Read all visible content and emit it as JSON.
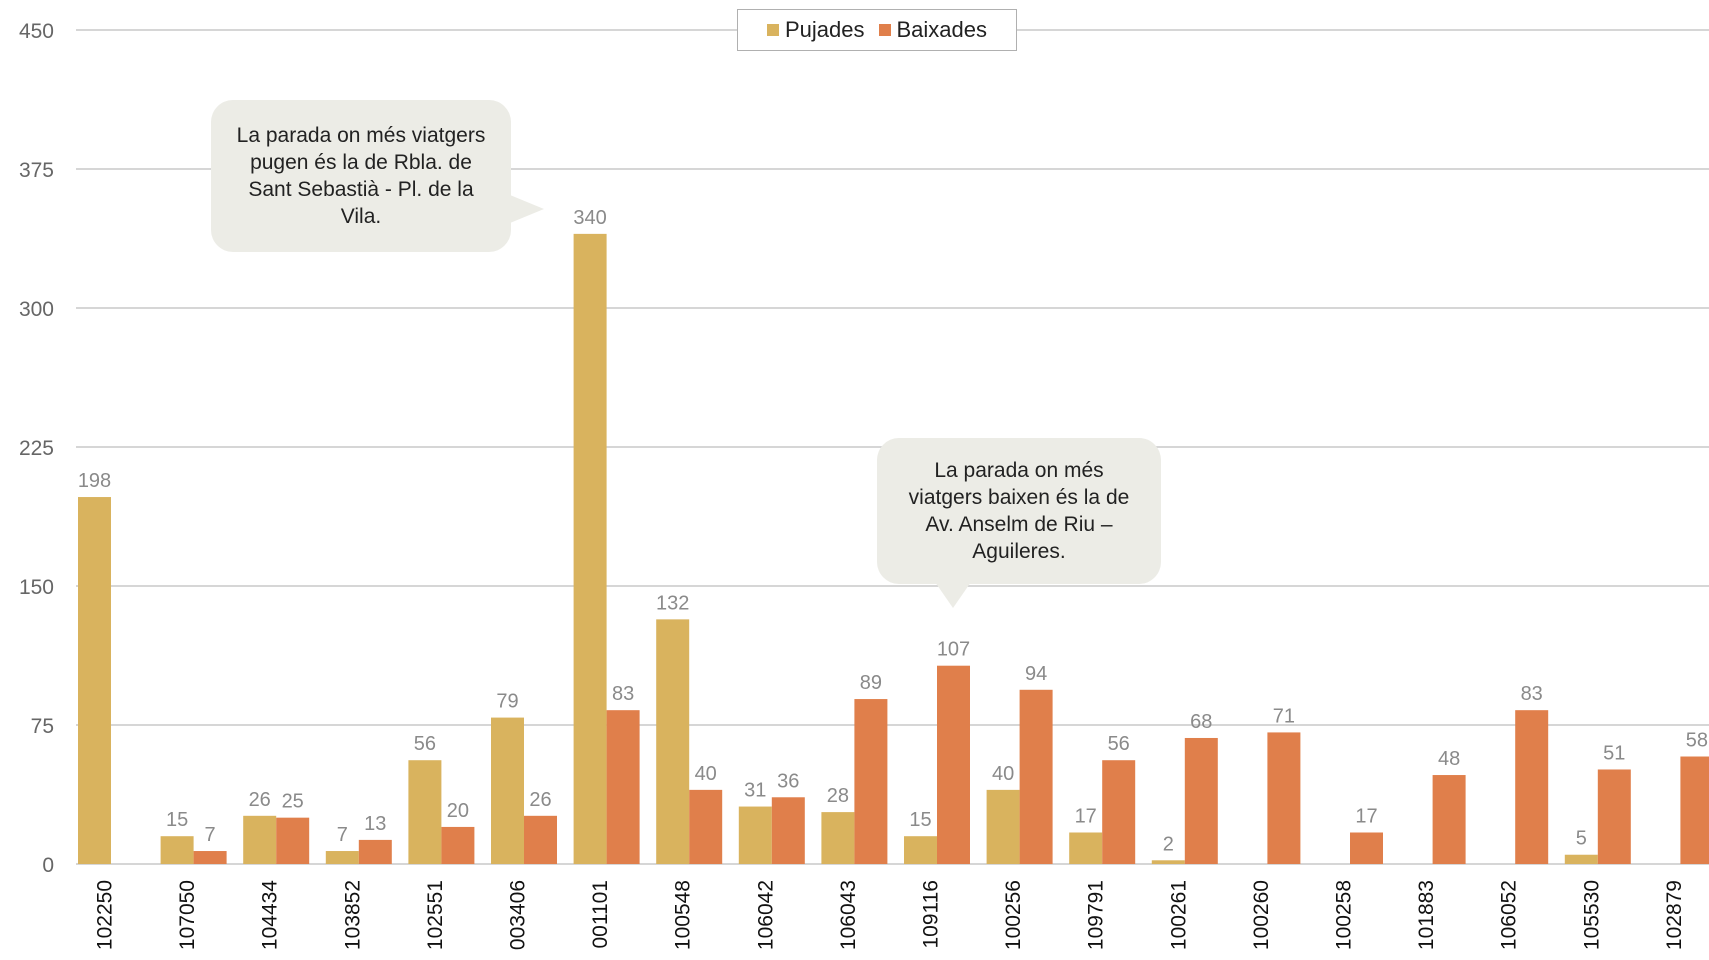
{
  "chart_data": {
    "type": "bar",
    "categories": [
      "102250",
      "107050",
      "104434",
      "103852",
      "102551",
      "003406",
      "001101",
      "100548",
      "106042",
      "106043",
      "109116",
      "100256",
      "109791",
      "100261",
      "100260",
      "100258",
      "101883",
      "106052",
      "105530",
      "102879"
    ],
    "series": [
      {
        "name": "Pujades",
        "color": "#d9b35e",
        "values": [
          198,
          15,
          26,
          7,
          56,
          79,
          340,
          132,
          31,
          28,
          15,
          40,
          17,
          2,
          null,
          null,
          null,
          null,
          5,
          null
        ]
      },
      {
        "name": "Baixades",
        "color": "#e07f4b",
        "values": [
          null,
          7,
          25,
          13,
          20,
          26,
          83,
          40,
          36,
          89,
          107,
          94,
          56,
          68,
          71,
          17,
          48,
          83,
          51,
          58
        ]
      }
    ],
    "yticks": [
      0,
      75,
      150,
      225,
      300,
      375,
      450
    ],
    "ylim": [
      0,
      450
    ],
    "grid": true,
    "legend_position": "top-center",
    "title": "",
    "xlabel": "",
    "ylabel": ""
  },
  "legend": {
    "items": [
      {
        "label": "Pujades",
        "color": "#d9b35e"
      },
      {
        "label": "Baixades",
        "color": "#e07f4b"
      }
    ]
  },
  "annotations": [
    {
      "text": "La parada on més viatgers pugen és la de Rbla. de Sant Sebastià - Pl. de la Vila."
    },
    {
      "text": "La parada on més viatgers baixen és la de Av. Anselm de Riu – Aguileres."
    }
  ]
}
